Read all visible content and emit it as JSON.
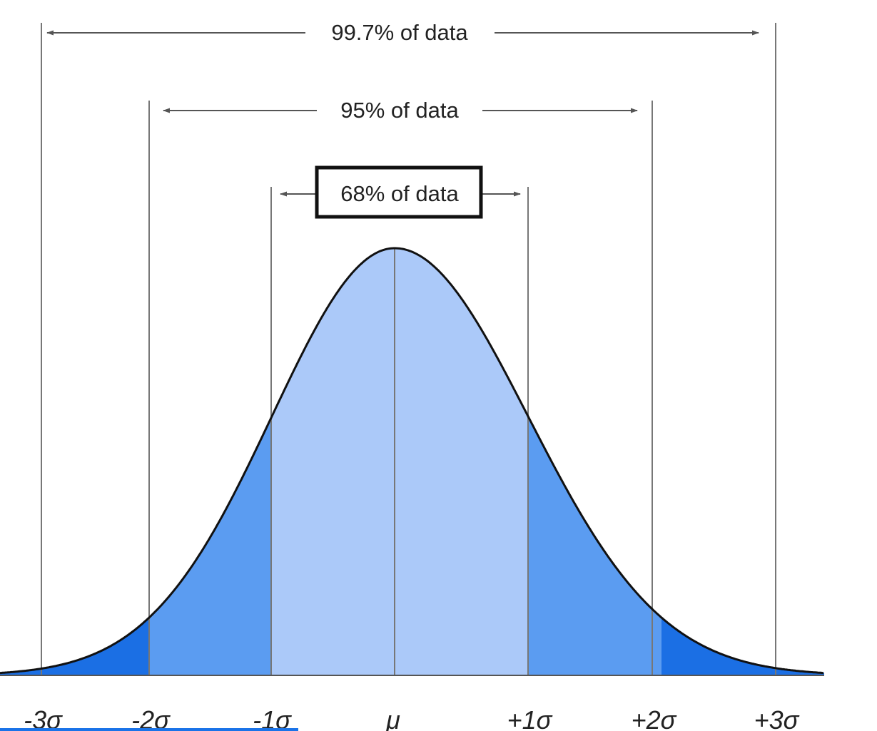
{
  "diagram": {
    "ranges": [
      {
        "label": "99.7% of data",
        "from": "-3σ",
        "to": "+3σ"
      },
      {
        "label": "95% of data",
        "from": "-2σ",
        "to": "+2σ"
      },
      {
        "label": "68% of data",
        "from": "-1σ",
        "to": "+1σ"
      }
    ],
    "ticks": [
      "-3σ",
      "-2σ",
      "-1σ",
      "μ",
      "+1σ",
      "+2σ",
      "+3σ"
    ],
    "colors": {
      "inner": "#abc9f9",
      "middle": "#5b9cf1",
      "outer": "#1b6fe4",
      "curve": "#111111",
      "lines": "#777777",
      "bottom_bar": "#1a73e8"
    }
  }
}
